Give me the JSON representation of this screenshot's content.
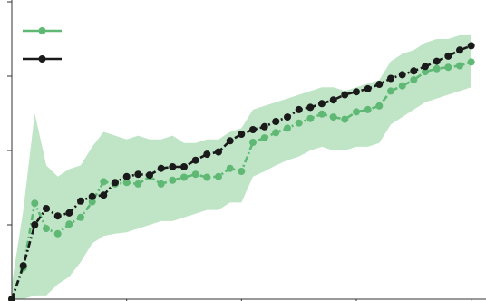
{
  "chart_data": {
    "type": "line",
    "title": "",
    "xlabel": "",
    "ylabel": "",
    "xlim": [
      0,
      40.5
    ],
    "ylim": [
      0,
      4
    ],
    "x_ticks": [
      0,
      10,
      20,
      30,
      40
    ],
    "y_ticks": [
      1,
      2,
      3,
      4
    ],
    "grid": false,
    "legend": {
      "placement": "top-left",
      "entries": [
        {
          "series_index": 0
        },
        {
          "series_index": 1
        }
      ]
    },
    "series": [
      {
        "color": "#5fb874",
        "marker": "circle",
        "line_style": "dash-dot",
        "x": [
          0,
          1,
          2,
          3,
          4,
          5,
          6,
          7,
          8,
          9,
          10,
          11,
          12,
          13,
          14,
          15,
          16,
          17,
          18,
          19,
          20,
          21,
          22,
          23,
          24,
          25,
          26,
          27,
          28,
          29,
          30,
          31,
          32,
          33,
          34,
          35,
          36,
          37,
          38,
          39,
          40
        ],
        "values": [
          0.0,
          0.42,
          1.29,
          0.95,
          0.88,
          1.01,
          1.1,
          1.31,
          1.58,
          1.55,
          1.57,
          1.55,
          1.65,
          1.55,
          1.6,
          1.64,
          1.68,
          1.64,
          1.65,
          1.76,
          1.72,
          2.11,
          2.17,
          2.24,
          2.3,
          2.37,
          2.43,
          2.49,
          2.45,
          2.42,
          2.52,
          2.55,
          2.6,
          2.8,
          2.87,
          2.95,
          3.06,
          3.1,
          3.12,
          3.14,
          3.19
        ],
        "band_upper": [
          0.2,
          1.2,
          2.5,
          1.8,
          1.65,
          1.75,
          1.8,
          2.05,
          2.25,
          2.2,
          2.15,
          2.2,
          2.15,
          2.15,
          2.2,
          2.1,
          2.1,
          2.15,
          2.15,
          2.25,
          2.3,
          2.55,
          2.6,
          2.65,
          2.7,
          2.75,
          2.8,
          2.85,
          2.85,
          2.8,
          2.85,
          2.9,
          2.95,
          3.2,
          3.3,
          3.35,
          3.45,
          3.5,
          3.5,
          3.55,
          3.55
        ],
        "band_lower": [
          0.0,
          0.0,
          0.05,
          0.05,
          0.2,
          0.3,
          0.5,
          0.75,
          0.85,
          0.88,
          0.9,
          0.95,
          1.0,
          1.05,
          1.05,
          1.1,
          1.15,
          1.2,
          1.2,
          1.3,
          1.3,
          1.65,
          1.72,
          1.8,
          1.87,
          1.92,
          2.0,
          2.05,
          2.0,
          2.0,
          2.05,
          2.05,
          2.1,
          2.35,
          2.45,
          2.55,
          2.65,
          2.7,
          2.75,
          2.8,
          2.85
        ]
      },
      {
        "color": "#1a1a1a",
        "marker": "circle",
        "line_style": "dash-dot",
        "x": [
          0,
          1,
          2,
          3,
          4,
          5,
          6,
          7,
          8,
          9,
          10,
          11,
          12,
          13,
          14,
          15,
          16,
          17,
          18,
          19,
          20,
          21,
          22,
          23,
          24,
          25,
          26,
          27,
          28,
          29,
          30,
          31,
          32,
          33,
          34,
          35,
          36,
          37,
          38,
          39,
          40
        ],
        "values": [
          0.0,
          0.45,
          1.0,
          1.22,
          1.12,
          1.16,
          1.32,
          1.38,
          1.4,
          1.57,
          1.65,
          1.68,
          1.67,
          1.76,
          1.78,
          1.78,
          1.87,
          1.95,
          1.98,
          2.13,
          2.22,
          2.28,
          2.32,
          2.39,
          2.45,
          2.55,
          2.58,
          2.63,
          2.68,
          2.75,
          2.79,
          2.83,
          2.89,
          2.97,
          3.02,
          3.07,
          3.13,
          3.2,
          3.27,
          3.35,
          3.41
        ]
      }
    ]
  }
}
